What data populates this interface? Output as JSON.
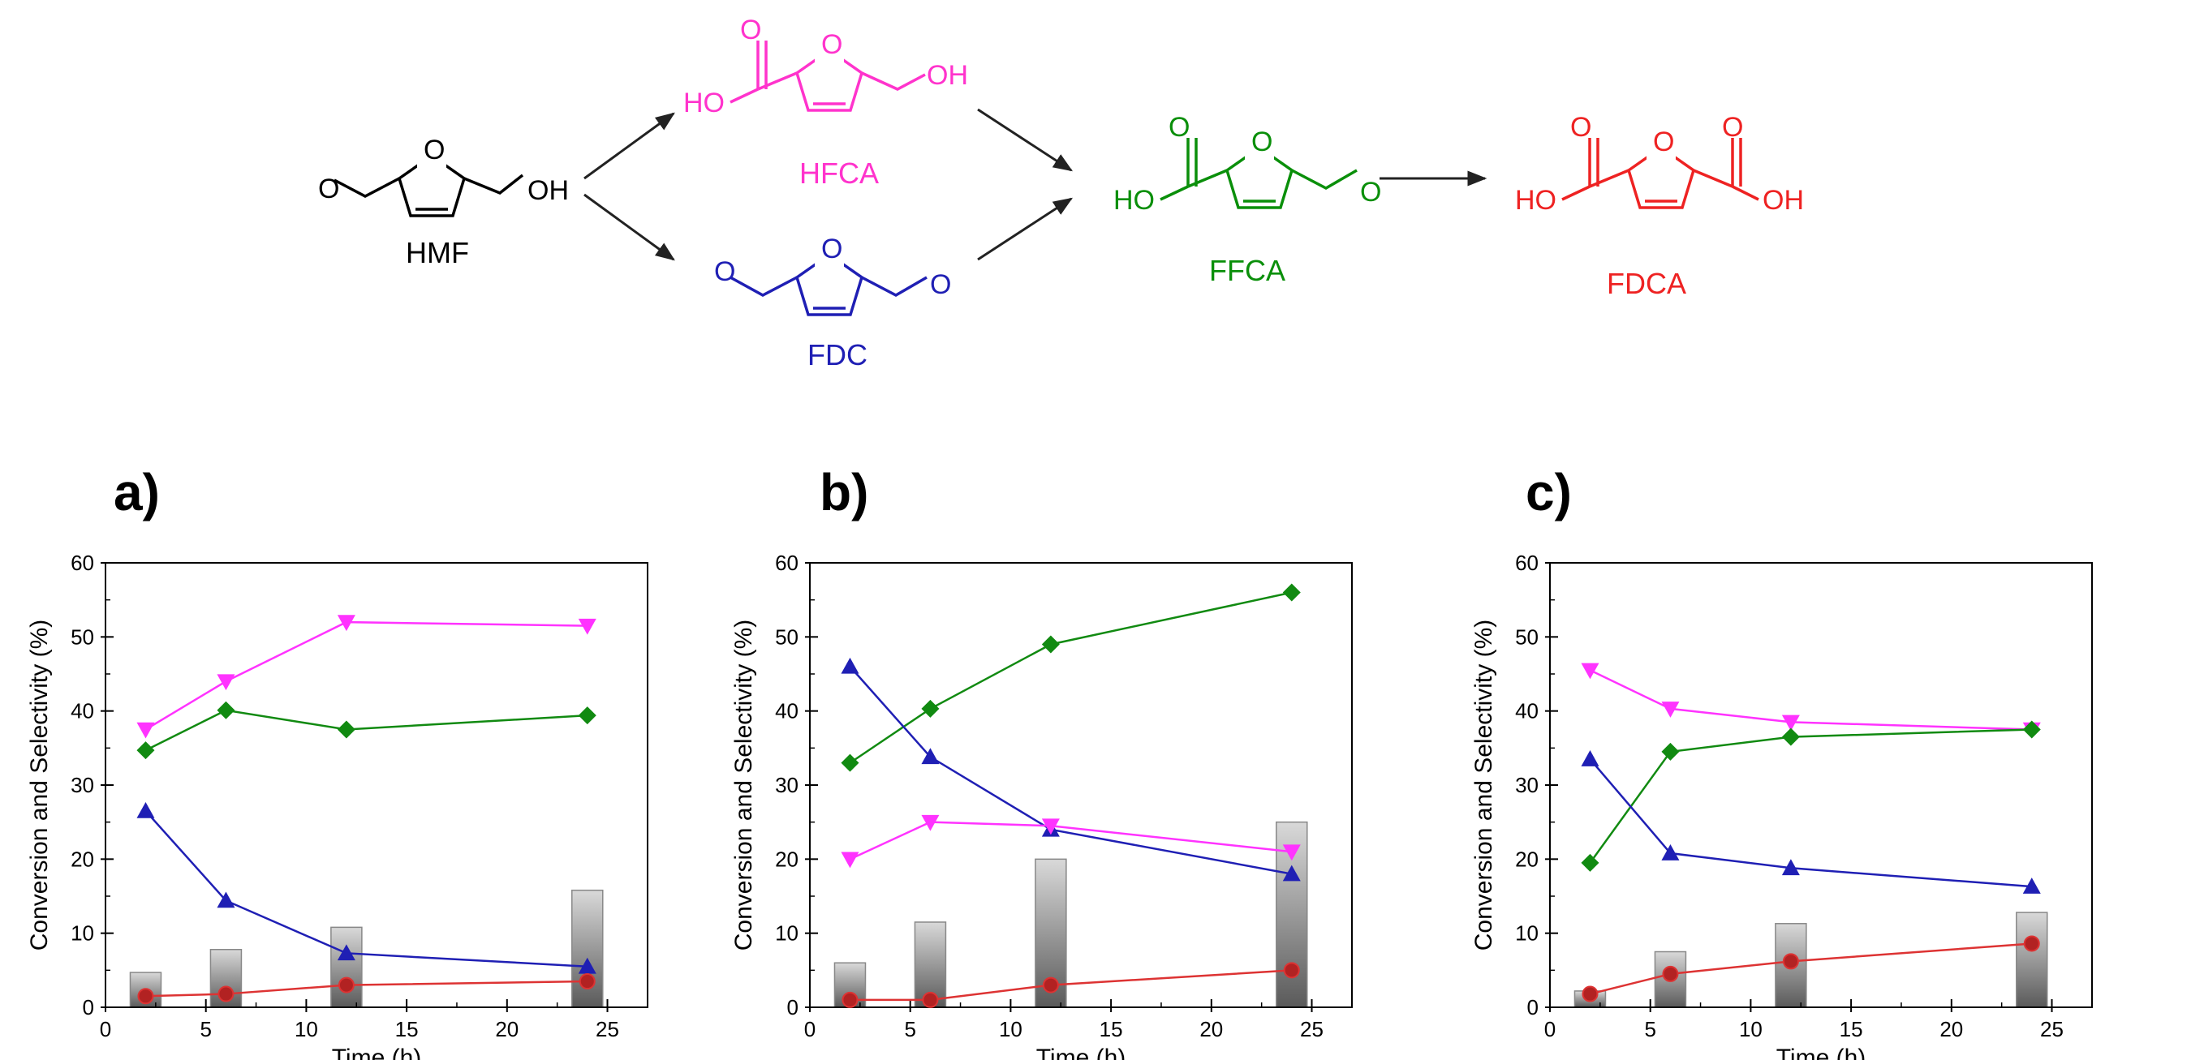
{
  "scheme": {
    "compounds": [
      {
        "id": "hmf",
        "label": "HMF",
        "color": "#000000"
      },
      {
        "id": "hfca",
        "label": "HFCA",
        "color": "#ff33cc"
      },
      {
        "id": "fdc",
        "label": "FDC",
        "color": "#1f1fb4"
      },
      {
        "id": "ffca",
        "label": "FFCA",
        "color": "#0a8f0a"
      },
      {
        "id": "fdca",
        "label": "FDCA",
        "color": "#ee2222"
      }
    ],
    "atoms": {
      "o": "O",
      "oh": "OH",
      "ho": "HO"
    }
  },
  "series_colors": {
    "HFCA": "#ff33ff",
    "FFCA": "#118a11",
    "FDC": "#1f1fb4",
    "FDCA": "#dd3333",
    "bars": "#a8a8a8"
  },
  "chart_data": [
    {
      "panel": "a)",
      "type": "line",
      "xlabel": "Time (h)",
      "ylabel": "Conversion and Selectivity (%)",
      "xlim": [
        0,
        27
      ],
      "ylim": [
        0,
        60
      ],
      "xticks": [
        0,
        5,
        10,
        15,
        20,
        25
      ],
      "yticks": [
        0,
        10,
        20,
        30,
        40,
        50,
        60
      ],
      "x": [
        2,
        6,
        12,
        24
      ],
      "bars": [
        4.7,
        7.8,
        10.8,
        15.8
      ],
      "series": [
        {
          "key": "HFCA",
          "marker": "triangle-down",
          "values": [
            37.5,
            44.0,
            52.0,
            51.5
          ]
        },
        {
          "key": "FFCA",
          "marker": "diamond",
          "values": [
            34.7,
            40.1,
            37.5,
            39.4
          ]
        },
        {
          "key": "FDC",
          "marker": "triangle-up",
          "values": [
            26.5,
            14.4,
            7.3,
            5.5
          ]
        },
        {
          "key": "FDCA",
          "marker": "circle",
          "values": [
            1.5,
            1.8,
            3.0,
            3.5
          ]
        }
      ]
    },
    {
      "panel": "b)",
      "type": "line",
      "xlabel": "Time (h)",
      "ylabel": "Conversion and Selectivity (%)",
      "xlim": [
        0,
        27
      ],
      "ylim": [
        0,
        60
      ],
      "xticks": [
        0,
        5,
        10,
        15,
        20,
        25
      ],
      "yticks": [
        0,
        10,
        20,
        30,
        40,
        50,
        60
      ],
      "x": [
        2,
        6,
        12,
        24
      ],
      "bars": [
        6.0,
        11.5,
        20.0,
        25.0
      ],
      "series": [
        {
          "key": "FFCA",
          "marker": "diamond",
          "values": [
            33.0,
            40.3,
            49.0,
            56.0
          ]
        },
        {
          "key": "FDC",
          "marker": "triangle-up",
          "values": [
            46.0,
            33.8,
            24.0,
            18.0
          ]
        },
        {
          "key": "HFCA",
          "marker": "triangle-down",
          "values": [
            20.0,
            25.0,
            24.5,
            21.0
          ]
        },
        {
          "key": "FDCA",
          "marker": "circle",
          "values": [
            1.0,
            1.0,
            3.0,
            5.0
          ]
        }
      ]
    },
    {
      "panel": "c)",
      "type": "line",
      "xlabel": "Time (h)",
      "ylabel": "Conversion and Selectivity (%)",
      "xlim": [
        0,
        27
      ],
      "ylim": [
        0,
        60
      ],
      "xticks": [
        0,
        5,
        10,
        15,
        20,
        25
      ],
      "yticks": [
        0,
        10,
        20,
        30,
        40,
        50,
        60
      ],
      "x": [
        2,
        6,
        12,
        24
      ],
      "bars": [
        2.2,
        7.5,
        11.3,
        12.8
      ],
      "series": [
        {
          "key": "HFCA",
          "marker": "triangle-down",
          "values": [
            45.5,
            40.3,
            38.5,
            37.5
          ]
        },
        {
          "key": "FFCA",
          "marker": "diamond",
          "values": [
            19.5,
            34.5,
            36.5,
            37.5
          ]
        },
        {
          "key": "FDC",
          "marker": "triangle-up",
          "values": [
            33.5,
            20.8,
            18.8,
            16.3
          ]
        },
        {
          "key": "FDCA",
          "marker": "circle",
          "values": [
            1.8,
            4.5,
            6.2,
            8.6
          ]
        }
      ]
    }
  ]
}
